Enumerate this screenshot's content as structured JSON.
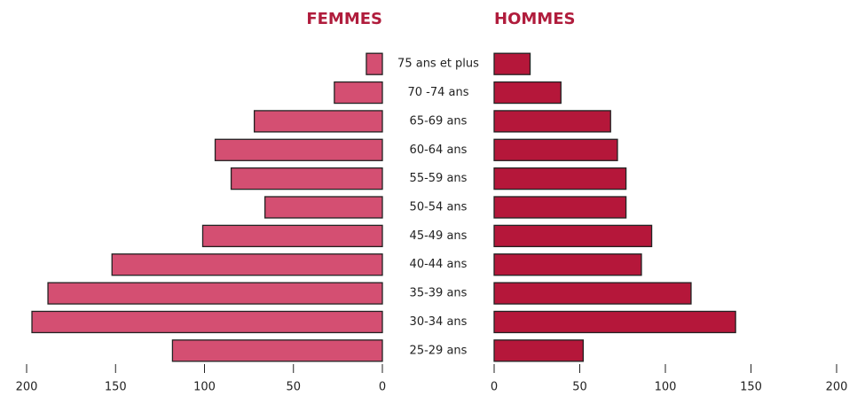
{
  "chart_data": {
    "type": "pyramid",
    "categories": [
      "75 ans et plus",
      "70 -74 ans",
      "65-69 ans",
      "60-64 ans",
      "55-59 ans",
      "50-54 ans",
      "45-49 ans",
      "40-44 ans",
      "35-39 ans",
      "30-34 ans",
      "25-29 ans"
    ],
    "series": [
      {
        "name": "FEMMES",
        "color": "#d44f72",
        "values": [
          9,
          27,
          72,
          94,
          85,
          66,
          101,
          152,
          188,
          197,
          118
        ]
      },
      {
        "name": "HOMMES",
        "color": "#b5173a",
        "values": [
          21,
          39,
          68,
          72,
          77,
          77,
          92,
          86,
          115,
          141,
          52
        ]
      }
    ],
    "xlim": [
      0,
      200
    ],
    "xticks": [
      0,
      50,
      100,
      150,
      200
    ]
  }
}
